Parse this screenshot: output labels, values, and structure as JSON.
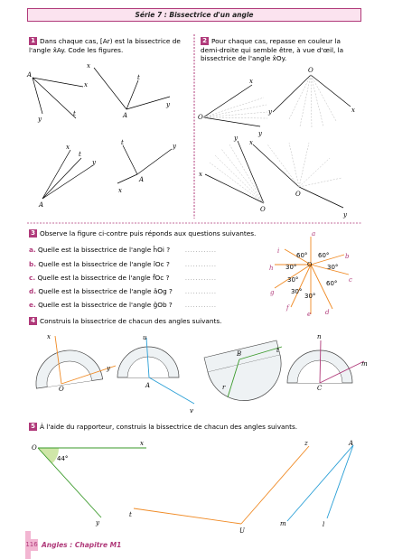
{
  "header": {
    "title": "Série 7 : Bissectrice d'un angle"
  },
  "ex1": {
    "num": "1",
    "text": "Dans chaque cas, [Ar) est la bissectrice de l'angle x̂Ay. Code les figures."
  },
  "ex2": {
    "num": "2",
    "text": "Pour chaque cas, repasse en couleur la demi-droite qui semble être, à vue d'œil, la bissectrice de l'angle x̂Oy."
  },
  "ex3": {
    "num": "3",
    "text": "Observe la figure ci-contre puis réponds aux questions suivantes.",
    "questions": [
      {
        "label": "a.",
        "text": "Quelle est la bissectrice de l'angle ĥOi ?"
      },
      {
        "label": "b.",
        "text": "Quelle est la bissectrice de l'angle îOc ?"
      },
      {
        "label": "c.",
        "text": "Quelle est la bissectrice de l'angle f̂Oc ?"
      },
      {
        "label": "d.",
        "text": "Quelle est la bissectrice de l'angle âOg ?"
      },
      {
        "label": "e.",
        "text": "Quelle est la bissectrice de l'angle ĝOb ?"
      }
    ],
    "dots": "............",
    "angles": [
      "60°",
      "60°",
      "30°",
      "30°",
      "30°",
      "60°",
      "30°",
      "30°"
    ]
  },
  "ex4": {
    "num": "4",
    "text": "Construis la bissectrice de chacun des angles suivants."
  },
  "ex5": {
    "num": "5",
    "text": "À l'aide du rapporteur, construis la bissectrice de chacun des angles suivants.",
    "angle": "44°"
  },
  "footer": {
    "page": "116",
    "title": "Angles : Chapitre M1"
  },
  "colors": {
    "accent": "#b03a7a",
    "orange": "#f08a24",
    "blue": "#2a9fd6",
    "green": "#3a9a2a",
    "purple": "#b03a7a"
  }
}
